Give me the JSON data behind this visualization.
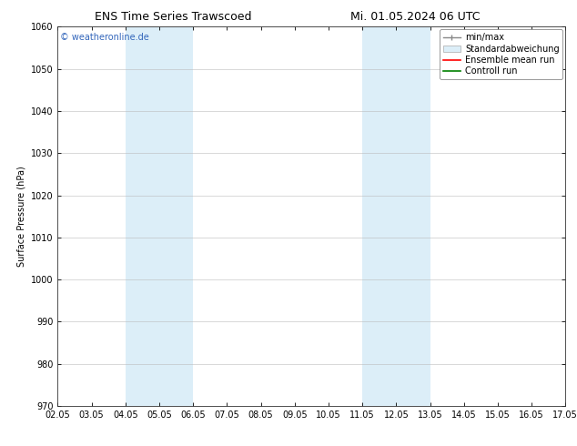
{
  "title_left": "ENS Time Series Trawscoed",
  "title_right": "Mi. 01.05.2024 06 UTC",
  "ylabel": "Surface Pressure (hPa)",
  "ylim": [
    970,
    1060
  ],
  "yticks": [
    970,
    980,
    990,
    1000,
    1010,
    1020,
    1030,
    1040,
    1050,
    1060
  ],
  "xlim": [
    0,
    15
  ],
  "xtick_labels": [
    "02.05",
    "03.05",
    "04.05",
    "05.05",
    "06.05",
    "07.05",
    "08.05",
    "09.05",
    "10.05",
    "11.05",
    "12.05",
    "13.05",
    "14.05",
    "15.05",
    "16.05",
    "17.05"
  ],
  "xtick_positions": [
    0,
    1,
    2,
    3,
    4,
    5,
    6,
    7,
    8,
    9,
    10,
    11,
    12,
    13,
    14,
    15
  ],
  "shaded_regions": [
    {
      "xmin": 2,
      "xmax": 4,
      "color": "#dceef8"
    },
    {
      "xmin": 9,
      "xmax": 11,
      "color": "#dceef8"
    }
  ],
  "watermark_text": "© weatheronline.de",
  "watermark_color": "#3366bb",
  "bg_color": "#ffffff",
  "grid_color": "#bbbbbb",
  "title_fontsize": 9,
  "label_fontsize": 7,
  "tick_fontsize": 7,
  "legend_fontsize": 7
}
